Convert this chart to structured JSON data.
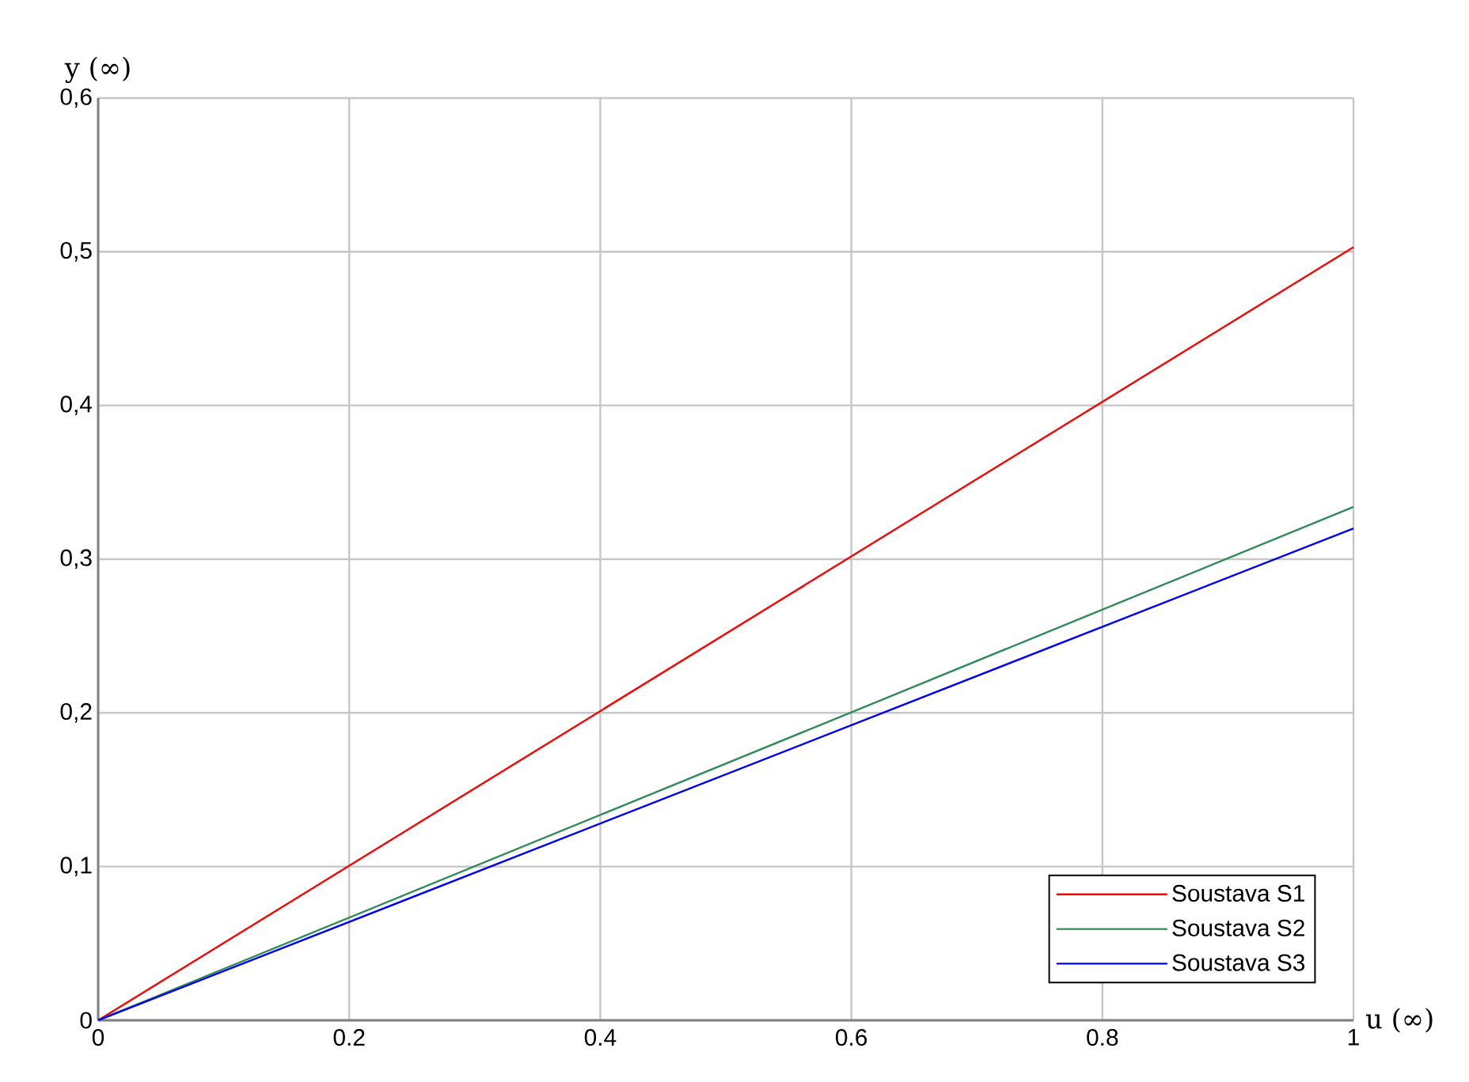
{
  "chart_data": {
    "type": "line",
    "xlabel": "u (∞)",
    "ylabel": "y (∞)",
    "x": [
      0,
      1
    ],
    "series": [
      {
        "name": "Soustava S1",
        "color": "#ff0000",
        "values": [
          0,
          0.503
        ]
      },
      {
        "name": "Soustava S2",
        "color": "#2e8b57",
        "values": [
          0,
          0.334
        ]
      },
      {
        "name": "Soustava S3",
        "color": "#0000ff",
        "values": [
          0,
          0.32
        ]
      }
    ],
    "xlim": [
      0,
      1
    ],
    "ylim": [
      0,
      0.6
    ],
    "xticks": [
      0,
      {
        "value": 0.2,
        "label": "0.2"
      },
      {
        "value": 0.4,
        "label": "0.4"
      },
      {
        "value": 0.6,
        "label": "0.6"
      },
      {
        "value": 0.8,
        "label": "0.8"
      },
      1
    ],
    "yticks": [
      0,
      {
        "value": 0.1,
        "label": "0,1"
      },
      {
        "value": 0.2,
        "label": "0,2"
      },
      {
        "value": 0.3,
        "label": "0,3"
      },
      {
        "value": 0.4,
        "label": "0,4"
      },
      {
        "value": 0.5,
        "label": "0,5"
      },
      {
        "value": 0.6,
        "label": "0,6"
      }
    ],
    "grid": true,
    "legend": "bottom right",
    "marker": "none",
    "line_style": "solid"
  }
}
